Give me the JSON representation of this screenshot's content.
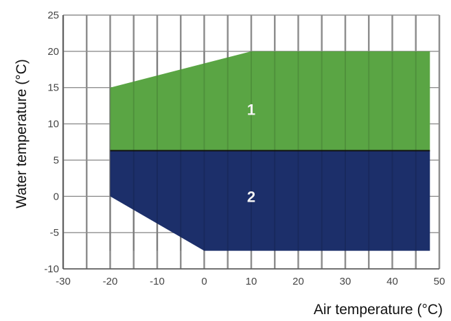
{
  "chart_data": {
    "type": "area",
    "xlabel": "Air temperature (°C)",
    "ylabel": "Water temperature (°C)",
    "xlim": [
      -30,
      50
    ],
    "ylim": [
      -10,
      25
    ],
    "x_ticks": [
      -30,
      -20,
      -10,
      0,
      10,
      20,
      30,
      40,
      50
    ],
    "y_ticks": [
      -10,
      -5,
      0,
      5,
      10,
      15,
      20,
      25
    ],
    "grid": true,
    "x_minor_step": 5,
    "zones": [
      {
        "label": "1",
        "color": "#5aa544",
        "polygon": [
          [
            -20,
            6.3
          ],
          [
            -20,
            15
          ],
          [
            10,
            20
          ],
          [
            48,
            20
          ],
          [
            48,
            6.3
          ]
        ],
        "label_at": [
          10,
          12
        ]
      },
      {
        "label": "2",
        "color": "#1c2f6a",
        "polygon": [
          [
            -20,
            6.3
          ],
          [
            -20,
            0
          ],
          [
            0,
            -7.5
          ],
          [
            48,
            -7.5
          ],
          [
            48,
            6.3
          ]
        ],
        "label_at": [
          10,
          0
        ]
      }
    ]
  },
  "colors": {
    "grid": "#8e8e8e",
    "axis": "#555555",
    "zone_divider": "#111111"
  }
}
